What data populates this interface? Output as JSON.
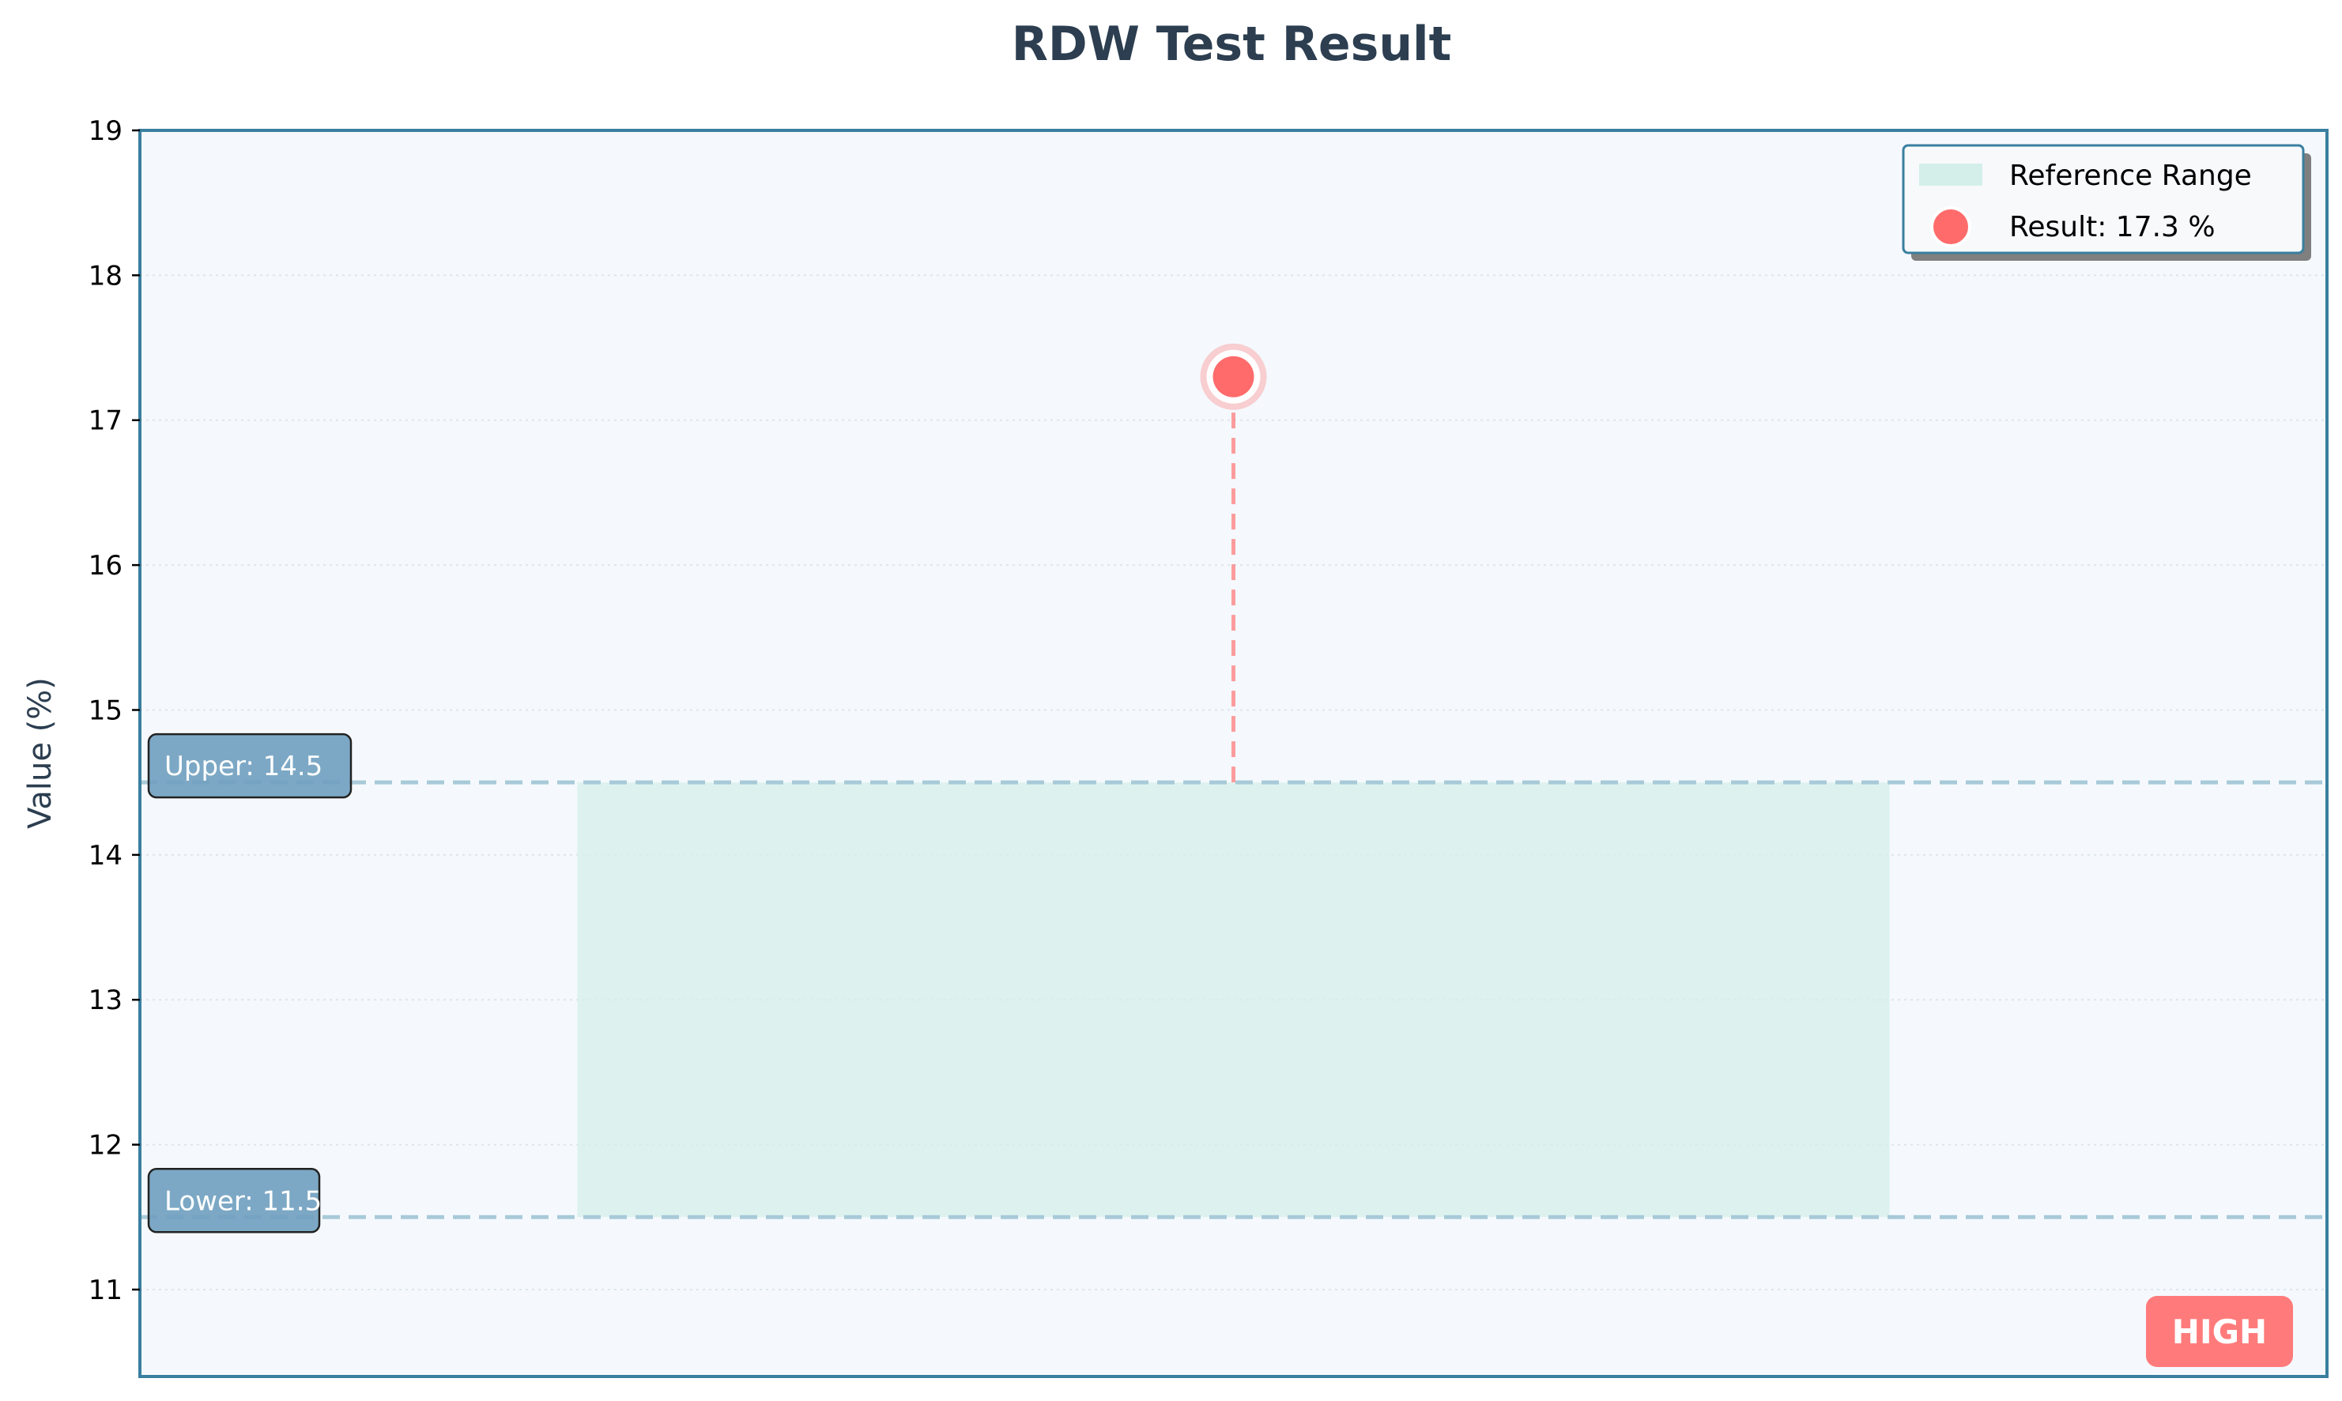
{
  "chart_data": {
    "type": "scatter",
    "title": "RDW Test Result",
    "xlabel": "",
    "ylabel": "Value (%)",
    "ylim": [
      10.4,
      19
    ],
    "yticks": [
      11,
      12,
      13,
      14,
      15,
      16,
      17,
      18,
      19
    ],
    "grid": true,
    "reference_range": {
      "lower": 11.5,
      "upper": 14.5,
      "legend_label": "Reference Range",
      "color": "#d4efe9",
      "x_span": [
        0.2,
        0.8
      ]
    },
    "bound_labels": {
      "upper": "Upper: 14.5",
      "lower": "Lower: 11.5"
    },
    "result": {
      "value": 17.3,
      "x": 0.5,
      "legend_label": "Result: 17.3 %",
      "color": "#ff6b6b"
    },
    "status": "HIGH",
    "legend_position": "top-right",
    "colors": {
      "frame": "#3a7fa0",
      "plot_background": "#f5f9fd",
      "bound_line": "#a8cad8",
      "label_box": "#6f9fbf",
      "title": "#2c3e50",
      "status_box": "#ff7b7b"
    }
  }
}
